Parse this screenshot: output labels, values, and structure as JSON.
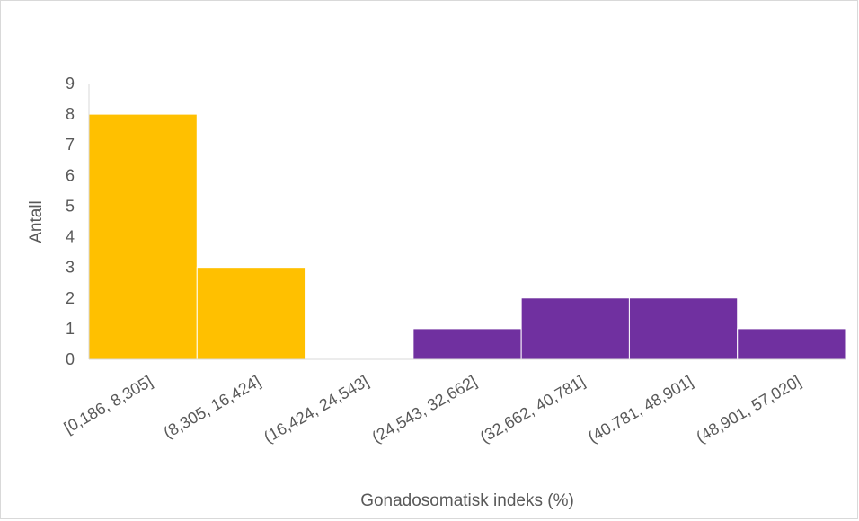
{
  "chart_data": {
    "type": "bar",
    "title": "",
    "xlabel": "Gonadosomatisk indeks (%)",
    "ylabel": "Antall",
    "categories": [
      "[0,186, 8,305]",
      "(8,305, 16,424]",
      "(16,424, 24,543]",
      "(24,543, 32,662]",
      "(32,662, 40,781]",
      "(40,781, 48,901]",
      "(48,901, 57,020]"
    ],
    "values": [
      8,
      3,
      0,
      1,
      2,
      2,
      1
    ],
    "bar_colors": [
      "#FFC000",
      "#FFC000",
      "#FFC000",
      "#7030A0",
      "#7030A0",
      "#7030A0",
      "#7030A0"
    ],
    "ylim": [
      0,
      9
    ],
    "yticks": [
      "0",
      "1",
      "2",
      "3",
      "4",
      "5",
      "6",
      "7",
      "8",
      "9"
    ],
    "grid": false,
    "legend": "none"
  }
}
